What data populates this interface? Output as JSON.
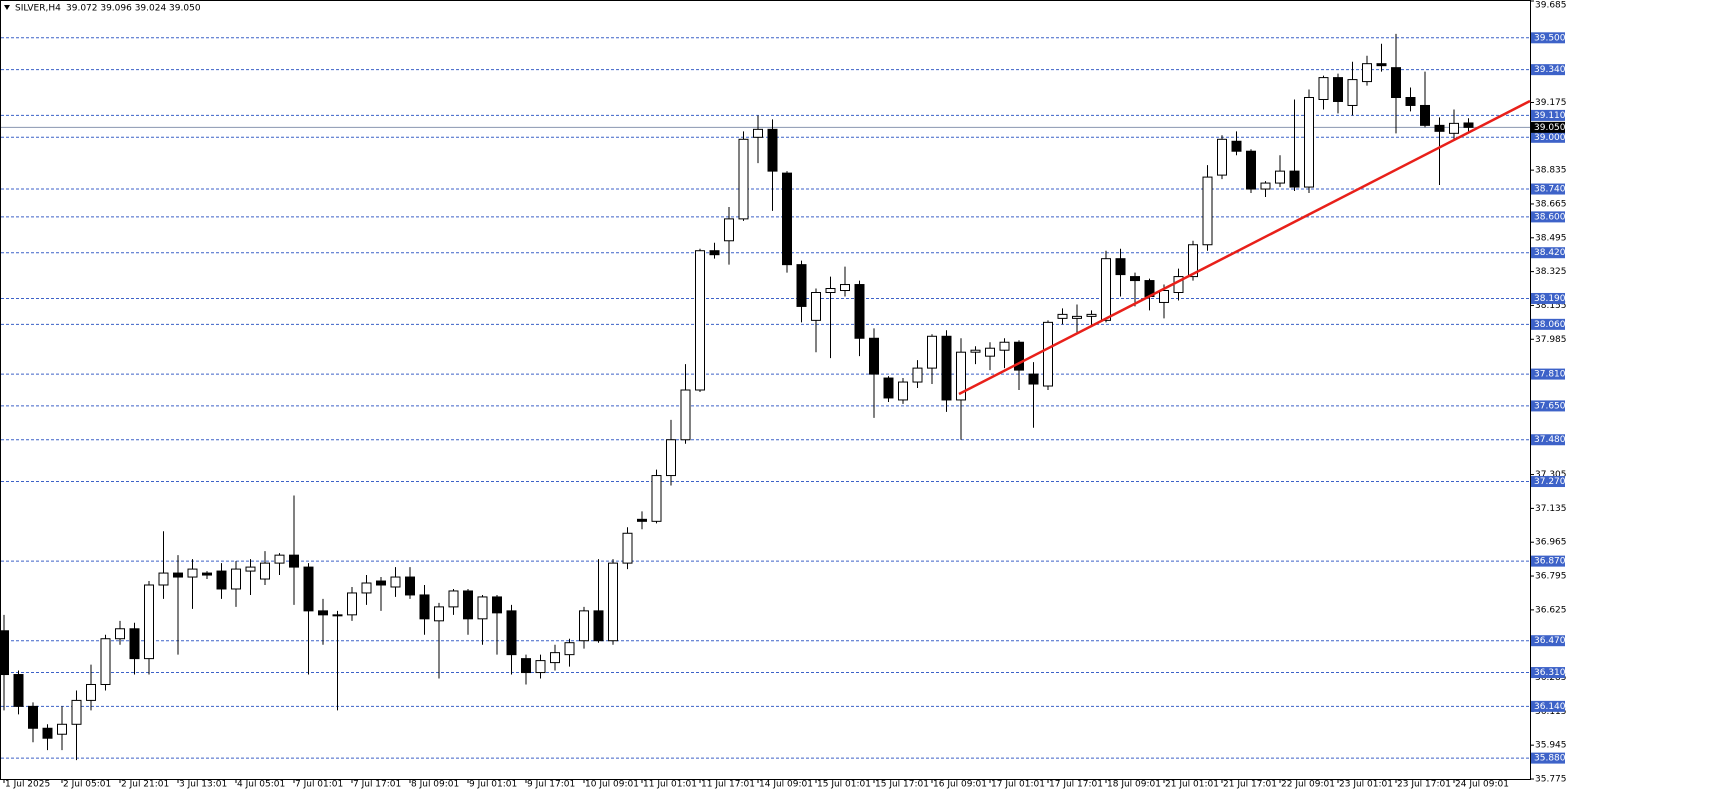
{
  "chart_data": {
    "type": "candlestick",
    "title": "SILVER,H4",
    "quote": "39.072 39.096 39.024 39.050",
    "bull_color": "#ffffff",
    "bear_color": "#000000",
    "level_color": "#3d62c8",
    "categories": [
      "1 Jul 2025",
      null,
      null,
      null,
      "2 Jul 05:01",
      null,
      null,
      null,
      "2 Jul 21:01",
      null,
      null,
      null,
      "3 Jul 13:01",
      null,
      null,
      null,
      "4 Jul 05:01",
      null,
      null,
      null,
      "7 Jul 01:01",
      null,
      null,
      null,
      "7 Jul 17:01",
      null,
      null,
      null,
      "8 Jul 09:01",
      null,
      null,
      null,
      "9 Jul 01:01",
      null,
      null,
      null,
      "9 Jul 17:01",
      null,
      null,
      null,
      "10 Jul 09:01",
      null,
      null,
      null,
      "11 Jul 01:01",
      null,
      null,
      null,
      "11 Jul 17:01",
      null,
      null,
      null,
      "14 Jul 09:01",
      null,
      null,
      null,
      "15 Jul 01:01",
      null,
      null,
      null,
      "15 Jul 17:01",
      null,
      null,
      null,
      "16 Jul 09:01",
      null,
      null,
      null,
      "17 Jul 01:01",
      null,
      null,
      null,
      "17 Jul 17:01",
      null,
      null,
      null,
      "18 Jul 09:01",
      null,
      null,
      null,
      "21 Jul 01:01",
      null,
      null,
      null,
      "21 Jul 17:01",
      null,
      null,
      null,
      "22 Jul 09:01",
      null,
      null,
      null,
      "23 Jul 01:01",
      null,
      null,
      null,
      "23 Jul 17:01",
      null,
      null,
      null,
      "24 Jul 09:01",
      null
    ],
    "open": [
      36.52,
      36.3,
      36.14,
      36.03,
      36.0,
      36.05,
      36.17,
      36.25,
      36.48,
      36.53,
      36.38,
      36.75,
      36.81,
      36.79,
      36.81,
      36.82,
      36.73,
      36.82,
      36.78,
      36.86,
      36.9,
      36.84,
      36.62,
      36.6,
      36.6,
      36.71,
      36.77,
      36.74,
      36.79,
      36.7,
      36.57,
      36.64,
      36.72,
      36.58,
      36.69,
      36.62,
      36.38,
      36.31,
      36.36,
      36.4,
      36.47,
      36.62,
      36.47,
      36.86,
      37.08,
      37.07,
      37.3,
      37.48,
      37.73,
      38.43,
      38.48,
      38.59,
      39.0,
      39.04,
      38.82,
      38.36,
      38.08,
      38.22,
      38.23,
      38.26,
      37.99,
      37.79,
      37.68,
      37.77,
      37.84,
      38.0,
      37.68,
      37.92,
      37.9,
      37.93,
      37.97,
      37.81,
      37.75,
      38.09,
      38.09,
      38.1,
      38.08,
      38.39,
      38.3,
      38.28,
      38.17,
      38.22,
      38.3,
      38.46,
      38.81,
      38.98,
      38.93,
      38.74,
      38.77,
      38.83,
      38.75,
      39.19,
      39.3,
      39.16,
      39.28,
      39.37,
      39.35,
      39.2,
      39.16,
      39.06,
      39.02,
      39.072
    ],
    "high": [
      36.6,
      36.32,
      36.16,
      36.05,
      36.14,
      36.22,
      36.35,
      36.5,
      36.57,
      36.56,
      36.77,
      37.02,
      36.9,
      36.88,
      36.82,
      36.86,
      36.87,
      36.88,
      36.92,
      36.91,
      37.2,
      36.86,
      36.68,
      36.62,
      36.74,
      36.8,
      36.79,
      36.84,
      36.84,
      36.75,
      36.66,
      36.73,
      36.73,
      36.7,
      36.7,
      36.65,
      36.4,
      36.4,
      36.45,
      36.48,
      36.64,
      36.88,
      36.88,
      37.04,
      37.12,
      37.33,
      37.58,
      37.86,
      38.44,
      38.47,
      38.65,
      39.03,
      39.11,
      39.09,
      38.83,
      38.38,
      38.24,
      38.3,
      38.35,
      38.28,
      38.04,
      37.8,
      37.79,
      37.88,
      38.01,
      38.03,
      37.99,
      37.95,
      37.97,
      37.99,
      37.98,
      37.87,
      38.08,
      38.14,
      38.16,
      38.13,
      38.43,
      38.44,
      38.32,
      38.29,
      38.26,
      38.34,
      38.48,
      38.86,
      39.01,
      39.03,
      38.94,
      38.78,
      38.91,
      39.19,
      39.24,
      39.31,
      39.32,
      39.38,
      39.41,
      39.47,
      39.52,
      39.25,
      39.33,
      39.1,
      39.14,
      39.096
    ],
    "low": [
      36.12,
      36.1,
      35.96,
      35.92,
      35.92,
      35.87,
      36.12,
      36.22,
      36.45,
      36.3,
      36.3,
      36.68,
      36.4,
      36.63,
      36.78,
      36.68,
      36.64,
      36.7,
      36.75,
      36.8,
      36.65,
      36.3,
      36.45,
      36.12,
      36.57,
      36.65,
      36.62,
      36.69,
      36.68,
      36.5,
      36.28,
      36.6,
      36.5,
      36.45,
      36.4,
      36.3,
      36.25,
      36.28,
      36.32,
      36.34,
      36.43,
      36.46,
      36.45,
      36.83,
      37.03,
      37.06,
      37.25,
      37.46,
      37.72,
      38.39,
      38.36,
      38.58,
      38.87,
      38.63,
      38.32,
      38.07,
      37.92,
      37.89,
      38.2,
      37.9,
      37.59,
      37.67,
      37.66,
      37.74,
      37.76,
      37.62,
      37.48,
      37.86,
      37.83,
      37.84,
      37.73,
      37.54,
      37.73,
      38.06,
      38.01,
      38.05,
      38.07,
      38.2,
      38.15,
      38.13,
      38.09,
      38.18,
      38.28,
      38.43,
      38.79,
      38.91,
      38.72,
      38.7,
      38.75,
      38.73,
      38.72,
      39.14,
      39.12,
      39.11,
      39.26,
      39.33,
      39.02,
      39.13,
      39.05,
      38.76,
      38.99,
      39.024
    ],
    "close": [
      36.3,
      36.14,
      36.03,
      35.98,
      36.05,
      36.17,
      36.25,
      36.48,
      36.53,
      36.38,
      36.75,
      36.81,
      36.79,
      36.83,
      36.8,
      36.73,
      36.83,
      36.84,
      36.86,
      36.9,
      36.84,
      36.62,
      36.6,
      36.6,
      36.71,
      36.76,
      36.75,
      36.79,
      36.7,
      36.58,
      36.64,
      36.72,
      36.58,
      36.69,
      36.61,
      36.4,
      36.31,
      36.37,
      36.41,
      36.46,
      36.62,
      36.47,
      36.86,
      37.01,
      37.07,
      37.3,
      37.48,
      37.73,
      38.43,
      38.41,
      38.59,
      38.99,
      39.04,
      38.83,
      38.36,
      38.15,
      38.22,
      38.24,
      38.26,
      37.99,
      37.81,
      37.69,
      37.77,
      37.84,
      38.0,
      37.68,
      37.92,
      37.93,
      37.94,
      37.97,
      37.83,
      37.76,
      38.07,
      38.11,
      38.1,
      38.11,
      38.39,
      38.31,
      38.28,
      38.2,
      38.23,
      38.3,
      38.46,
      38.8,
      38.99,
      38.93,
      38.74,
      38.77,
      38.83,
      38.75,
      39.2,
      39.3,
      39.18,
      39.29,
      39.37,
      39.36,
      39.2,
      39.16,
      39.06,
      39.03,
      39.07,
      39.05
    ],
    "ylim": [
      35.775,
      39.685
    ],
    "yticks": [
      39.685,
      39.175,
      38.835,
      38.665,
      38.495,
      38.325,
      38.155,
      37.985,
      37.305,
      37.135,
      36.965,
      36.795,
      36.625,
      36.285,
      36.115,
      35.945,
      35.775
    ],
    "levels": [
      {
        "value": 39.5,
        "label": "39.500"
      },
      {
        "value": 39.34,
        "label": "39.340"
      },
      {
        "value": 39.11,
        "label": "39.110"
      },
      {
        "value": 39.0,
        "label": "39.000"
      },
      {
        "value": 38.74,
        "label": "38.740"
      },
      {
        "value": 38.6,
        "label": "38.600"
      },
      {
        "value": 38.42,
        "label": "38.420"
      },
      {
        "value": 38.19,
        "label": "38.190"
      },
      {
        "value": 38.06,
        "label": "38.060"
      },
      {
        "value": 37.81,
        "label": "37.810"
      },
      {
        "value": 37.65,
        "label": "37.650"
      },
      {
        "value": 37.48,
        "label": "37.480"
      },
      {
        "value": 37.27,
        "label": "37.270"
      },
      {
        "value": 36.87,
        "label": "36.870"
      },
      {
        "value": 36.47,
        "label": "36.470"
      },
      {
        "value": 36.31,
        "label": "36.310"
      },
      {
        "value": 36.14,
        "label": "36.140"
      },
      {
        "value": 35.88,
        "label": "35.880"
      }
    ],
    "bid": {
      "value": 39.05,
      "label": "39.050"
    }
  }
}
